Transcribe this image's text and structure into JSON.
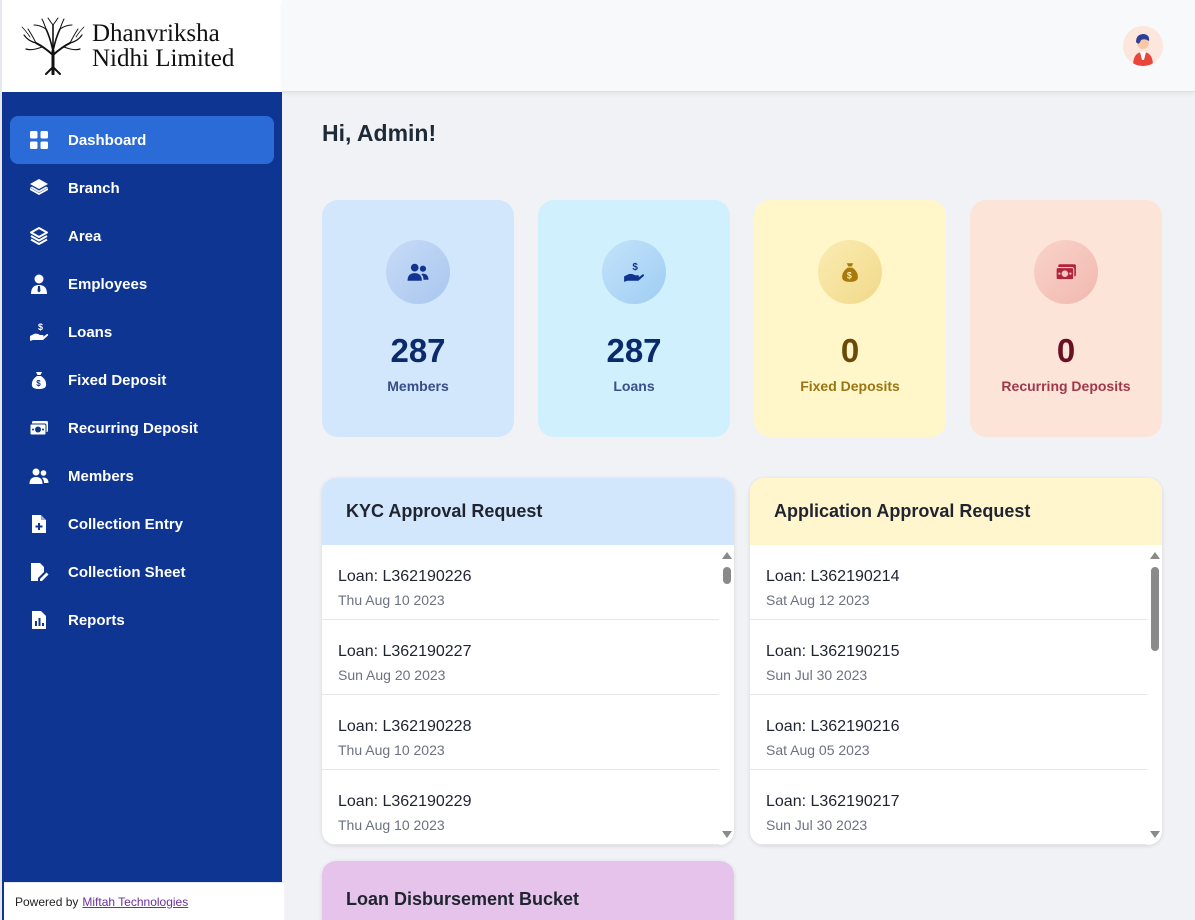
{
  "brand": {
    "line1": "Dhanvriksha",
    "line2": "Nidhi Limited"
  },
  "nav": [
    {
      "label": "Dashboard",
      "icon": "grid-icon",
      "active": true
    },
    {
      "label": "Branch",
      "icon": "layers-icon"
    },
    {
      "label": "Area",
      "icon": "layers-outline-icon"
    },
    {
      "label": "Employees",
      "icon": "employee-icon"
    },
    {
      "label": "Loans",
      "icon": "hand-dollar-icon"
    },
    {
      "label": "Fixed Deposit",
      "icon": "money-bag-icon"
    },
    {
      "label": "Recurring Deposit",
      "icon": "cash-icon"
    },
    {
      "label": "Members",
      "icon": "users-icon"
    },
    {
      "label": "Collection Entry",
      "icon": "file-plus-icon"
    },
    {
      "label": "Collection Sheet",
      "icon": "file-edit-icon"
    },
    {
      "label": "Reports",
      "icon": "file-chart-icon"
    }
  ],
  "footer": {
    "prefix": "Powered by",
    "link": "Miftah Technologies"
  },
  "greeting": "Hi, Admin!",
  "stats": [
    {
      "value": "287",
      "label": "Members",
      "icon": "users-icon"
    },
    {
      "value": "287",
      "label": "Loans",
      "icon": "hand-dollar-icon"
    },
    {
      "value": "0",
      "label": "Fixed Deposits",
      "icon": "money-bag-icon"
    },
    {
      "value": "0",
      "label": "Recurring Deposits",
      "icon": "cash-icon"
    }
  ],
  "kyc": {
    "title": "KYC Approval Request",
    "rows": [
      {
        "loan": "Loan: L362190226",
        "date": "Thu Aug 10 2023"
      },
      {
        "loan": "Loan: L362190227",
        "date": "Sun Aug 20 2023"
      },
      {
        "loan": "Loan: L362190228",
        "date": "Thu Aug 10 2023"
      },
      {
        "loan": "Loan: L362190229",
        "date": "Thu Aug 10 2023"
      }
    ]
  },
  "application": {
    "title": "Application Approval Request",
    "rows": [
      {
        "loan": "Loan: L362190214",
        "date": "Sat Aug 12 2023"
      },
      {
        "loan": "Loan: L362190215",
        "date": "Sun Jul 30 2023"
      },
      {
        "loan": "Loan: L362190216",
        "date": "Sat Aug 05 2023"
      },
      {
        "loan": "Loan: L362190217",
        "date": "Sun Jul 30 2023"
      }
    ]
  },
  "disbursement": {
    "title": "Loan Disbursement Bucket"
  },
  "colors": {
    "sidebar": "#0e3592",
    "active": "#2a6bd8",
    "background": "#f1f2f6"
  }
}
